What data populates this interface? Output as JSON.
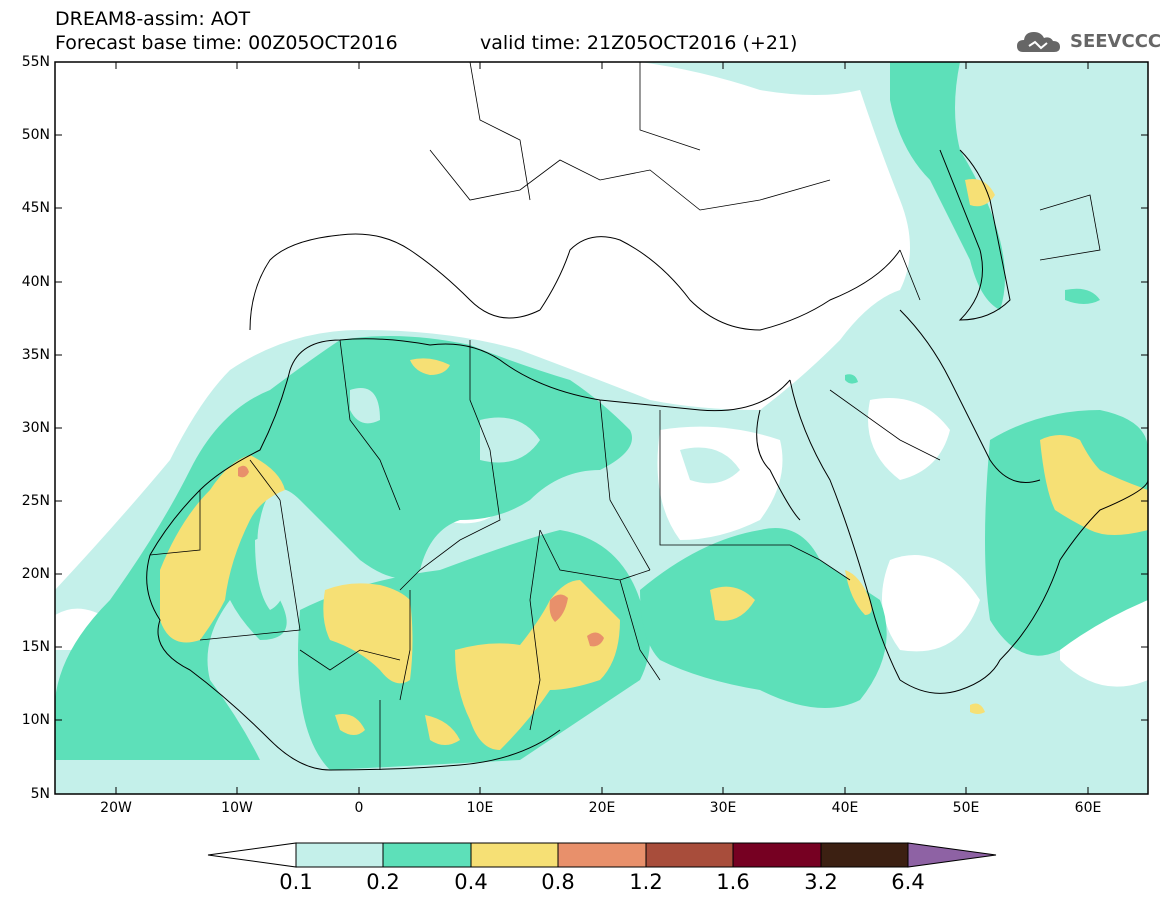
{
  "header": {
    "title": "DREAM8-assim: AOT",
    "base_time": "Forecast base time: 00Z05OCT2016",
    "valid_time": "valid time: 21Z05OCT2016 (+21)"
  },
  "logo": {
    "text": "SEEVCCC",
    "icon": "cloud-logo-icon"
  },
  "map": {
    "lat_labels": [
      "55N",
      "50N",
      "45N",
      "40N",
      "35N",
      "30N",
      "25N",
      "20N",
      "15N",
      "10N",
      "5N"
    ],
    "lon_labels": [
      "20W",
      "10W",
      "0",
      "10E",
      "20E",
      "30E",
      "40E",
      "50E",
      "60E"
    ],
    "lat_range": [
      5,
      55
    ],
    "lon_range": [
      -25,
      65
    ]
  },
  "colorbar": {
    "labels": [
      "0.1",
      "0.2",
      "0.4",
      "0.8",
      "1.2",
      "1.6",
      "3.2",
      "6.4"
    ],
    "colors": [
      "#ffffff",
      "#c4f0ea",
      "#5de0b9",
      "#f6e075",
      "#e8906b",
      "#a84d3b",
      "#760022",
      "#3c2012",
      "#8e62a4"
    ]
  },
  "colors": {
    "level_0.1": "#c4f0ea",
    "level_0.2": "#5de0b9",
    "level_0.4": "#f6e075",
    "level_0.8": "#e8906b"
  }
}
